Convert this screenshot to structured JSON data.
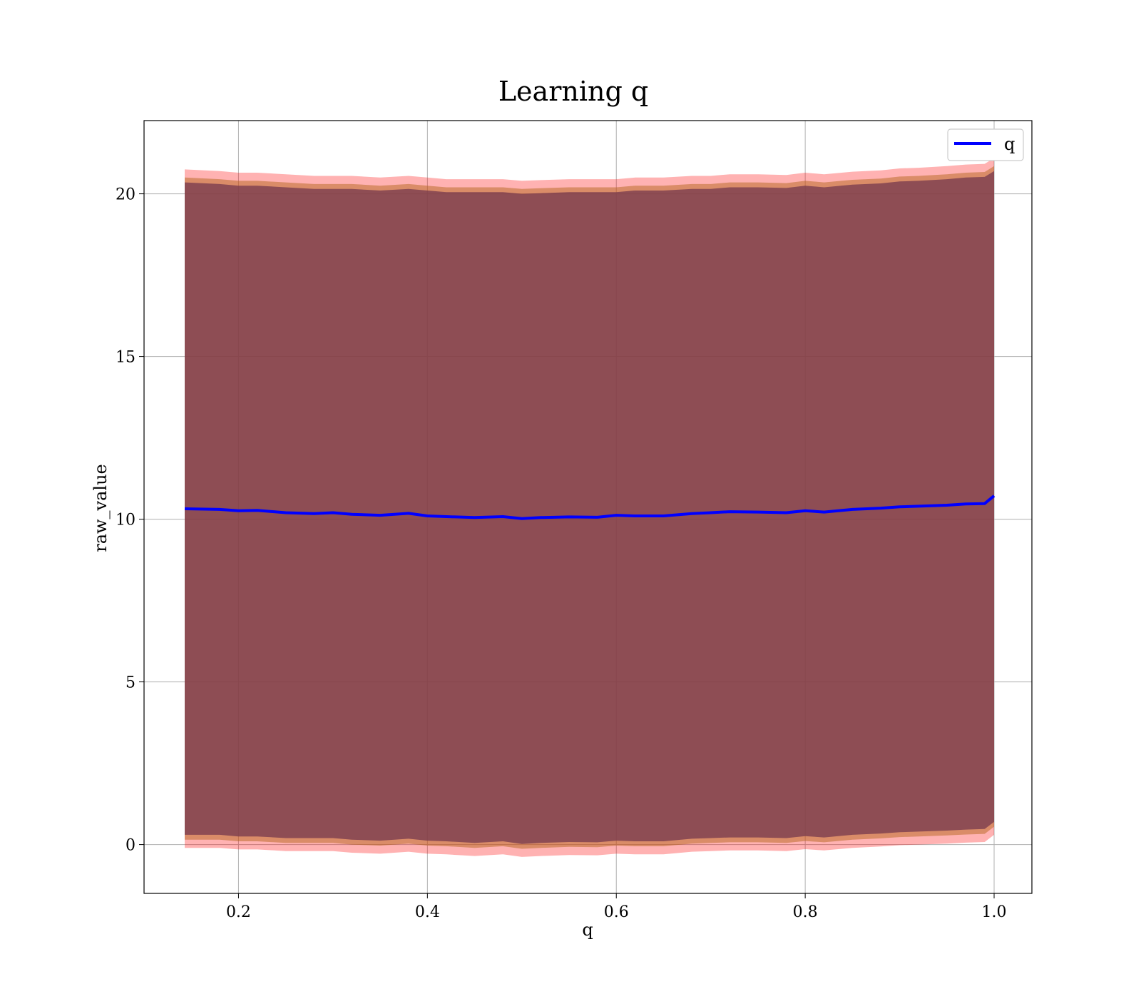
{
  "chart_data": {
    "type": "line",
    "title": "Learning q",
    "xlabel": "q",
    "ylabel": "raw_value",
    "xlim": [
      0.1,
      1.04
    ],
    "ylim": [
      -1.5,
      22.25
    ],
    "grid": true,
    "legend_position": "top-right",
    "x_ticks": [
      "0.2",
      "0.4",
      "0.6",
      "0.8",
      "1.0"
    ],
    "y_ticks": [
      "0",
      "5",
      "10",
      "15",
      "20"
    ],
    "colors": {
      "mean_line": "#0000ff",
      "outer_band": "#ff0000",
      "mid_band": "#b5651d",
      "inner_band": "#7a3d4f"
    },
    "x": [
      0.143,
      0.18,
      0.2,
      0.22,
      0.25,
      0.28,
      0.3,
      0.32,
      0.35,
      0.38,
      0.4,
      0.42,
      0.45,
      0.48,
      0.5,
      0.52,
      0.55,
      0.58,
      0.6,
      0.62,
      0.65,
      0.68,
      0.7,
      0.72,
      0.75,
      0.78,
      0.8,
      0.82,
      0.85,
      0.88,
      0.9,
      0.92,
      0.95,
      0.97,
      0.99,
      1.0
    ],
    "series": [
      {
        "name": "q",
        "values": [
          10.32,
          10.3,
          10.26,
          10.27,
          10.2,
          10.17,
          10.2,
          10.15,
          10.12,
          10.18,
          10.1,
          10.08,
          10.05,
          10.08,
          10.02,
          10.05,
          10.07,
          10.06,
          10.12,
          10.1,
          10.1,
          10.17,
          10.2,
          10.23,
          10.22,
          10.2,
          10.26,
          10.22,
          10.3,
          10.34,
          10.38,
          10.4,
          10.43,
          10.47,
          10.48,
          10.72
        ]
      }
    ],
    "bands": [
      {
        "upper": [
          20.75,
          20.7,
          20.65,
          20.65,
          20.6,
          20.55,
          20.55,
          20.55,
          20.5,
          20.55,
          20.5,
          20.45,
          20.45,
          20.45,
          20.4,
          20.42,
          20.45,
          20.45,
          20.45,
          20.5,
          20.5,
          20.55,
          20.55,
          20.6,
          20.6,
          20.58,
          20.65,
          20.6,
          20.68,
          20.72,
          20.78,
          20.8,
          20.85,
          20.9,
          20.92,
          21.1
        ],
        "lower": [
          -0.1,
          -0.1,
          -0.15,
          -0.15,
          -0.2,
          -0.2,
          -0.2,
          -0.25,
          -0.28,
          -0.22,
          -0.28,
          -0.3,
          -0.35,
          -0.3,
          -0.38,
          -0.35,
          -0.32,
          -0.33,
          -0.28,
          -0.3,
          -0.3,
          -0.22,
          -0.2,
          -0.18,
          -0.18,
          -0.2,
          -0.14,
          -0.18,
          -0.1,
          -0.06,
          -0.02,
          0.0,
          0.03,
          0.06,
          0.08,
          0.3
        ]
      },
      {
        "upper": [
          20.5,
          20.45,
          20.4,
          20.4,
          20.35,
          20.3,
          20.3,
          20.3,
          20.25,
          20.3,
          20.25,
          20.2,
          20.2,
          20.2,
          20.15,
          20.17,
          20.2,
          20.2,
          20.2,
          20.25,
          20.25,
          20.3,
          20.3,
          20.35,
          20.35,
          20.33,
          20.4,
          20.35,
          20.43,
          20.47,
          20.53,
          20.55,
          20.6,
          20.65,
          20.67,
          20.85
        ],
        "lower": [
          0.15,
          0.15,
          0.1,
          0.1,
          0.05,
          0.05,
          0.05,
          0.0,
          -0.03,
          0.03,
          -0.03,
          -0.05,
          -0.1,
          -0.05,
          -0.13,
          -0.1,
          -0.07,
          -0.08,
          -0.03,
          -0.05,
          -0.05,
          0.03,
          0.05,
          0.07,
          0.07,
          0.05,
          0.11,
          0.07,
          0.15,
          0.19,
          0.23,
          0.25,
          0.28,
          0.31,
          0.33,
          0.55
        ]
      },
      {
        "upper": [
          20.35,
          20.3,
          20.25,
          20.25,
          20.2,
          20.15,
          20.15,
          20.15,
          20.1,
          20.15,
          20.1,
          20.05,
          20.05,
          20.05,
          20.0,
          20.02,
          20.05,
          20.05,
          20.05,
          20.1,
          20.1,
          20.15,
          20.15,
          20.2,
          20.2,
          20.18,
          20.25,
          20.2,
          20.28,
          20.32,
          20.38,
          20.4,
          20.45,
          20.5,
          20.52,
          20.7
        ],
        "lower": [
          0.3,
          0.3,
          0.25,
          0.25,
          0.2,
          0.2,
          0.2,
          0.15,
          0.12,
          0.18,
          0.12,
          0.1,
          0.05,
          0.1,
          0.02,
          0.05,
          0.08,
          0.07,
          0.12,
          0.1,
          0.1,
          0.18,
          0.2,
          0.22,
          0.22,
          0.2,
          0.26,
          0.22,
          0.3,
          0.34,
          0.38,
          0.4,
          0.43,
          0.46,
          0.48,
          0.7
        ]
      }
    ]
  }
}
